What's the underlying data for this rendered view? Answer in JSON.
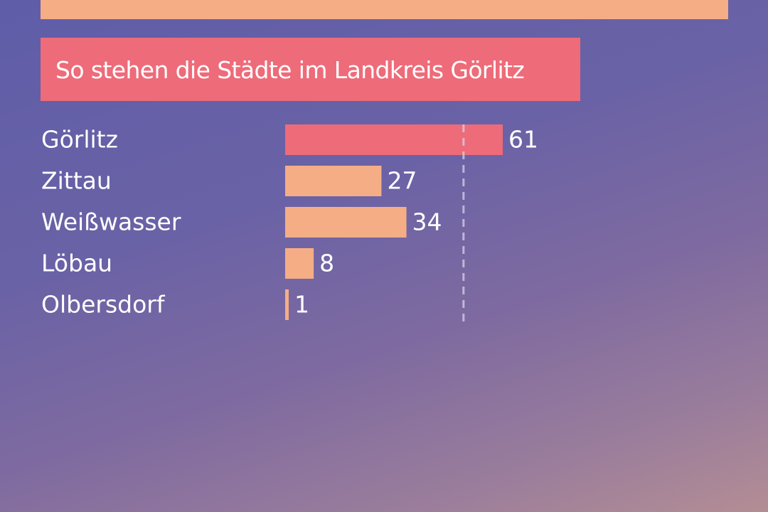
{
  "header": {
    "title": "So stehen die Städte im Landkreis Görlitz"
  },
  "colors": {
    "highlight_bar": "#ee6b79",
    "bar": "#f5ad86",
    "banner": "#f5ad86",
    "text": "#ffffff",
    "reference_line": "#d6d2e8"
  },
  "chart_data": {
    "type": "bar",
    "orientation": "horizontal",
    "title": "So stehen die Städte im Landkreis Görlitz",
    "categories": [
      "Görlitz",
      "Zittau",
      "Weißwasser",
      "Löbau",
      "Olbersdorf"
    ],
    "values": [
      61,
      27,
      34,
      8,
      1
    ],
    "highlighted_category": "Görlitz",
    "reference_line": 50,
    "xlim": [
      0,
      136
    ],
    "data_labels": true,
    "grid": false,
    "legend": false
  }
}
